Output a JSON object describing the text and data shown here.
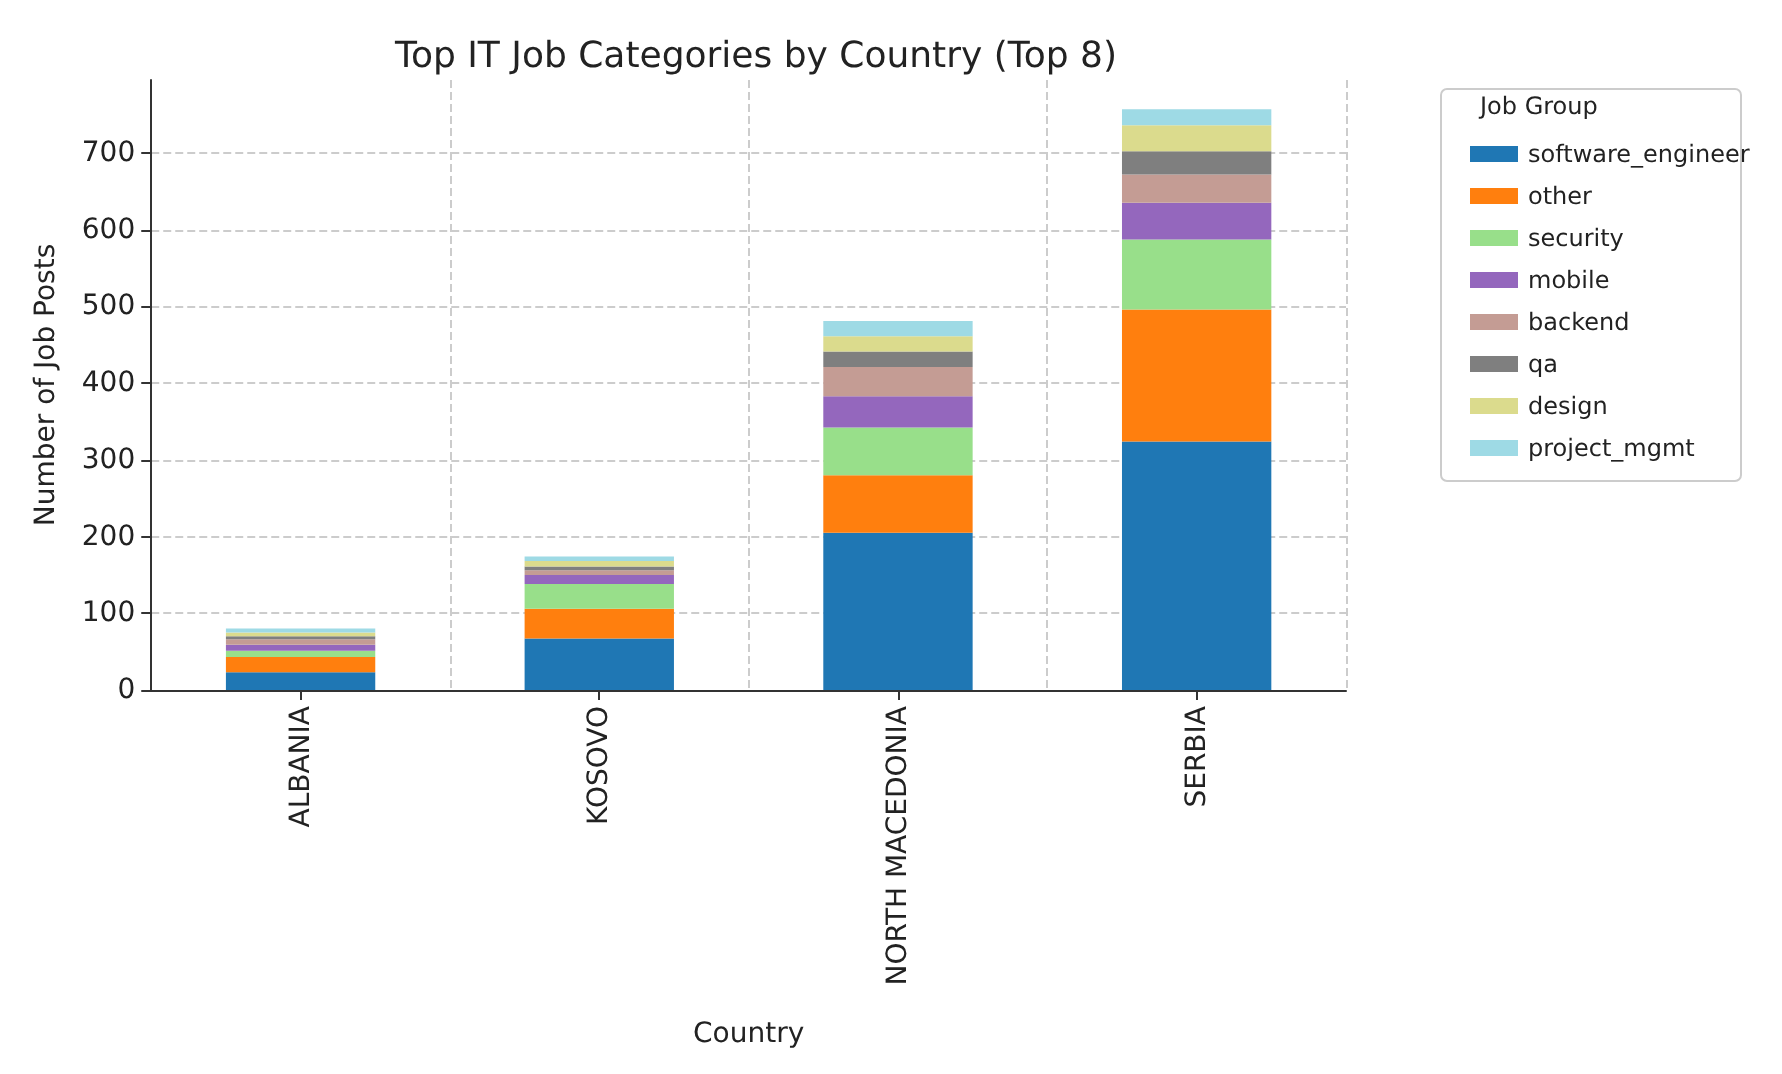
{
  "chart_data": {
    "type": "bar",
    "title": "Top IT Job Categories by Country (Top 8)",
    "xlabel": "Country",
    "ylabel": "Number of Job Posts",
    "legend_title": "Job Group",
    "categories": [
      "ALBANIA",
      "KOSOVO",
      "NORTH MACEDONIA",
      "SERBIA"
    ],
    "stacked": true,
    "ylim": [
      0,
      795
    ],
    "yticks": [
      0,
      100,
      200,
      300,
      400,
      500,
      600,
      700
    ],
    "grid": true,
    "legend": "top right",
    "series": [
      {
        "name": "software_engineer",
        "color": "#1f77b4",
        "values": [
          23,
          67,
          205,
          324
        ]
      },
      {
        "name": "other",
        "color": "#ff7f0e",
        "values": [
          20,
          39,
          75,
          172
        ]
      },
      {
        "name": "security",
        "color": "#98df8a",
        "values": [
          8,
          32,
          62,
          91
        ]
      },
      {
        "name": "mobile",
        "color": "#9467bd",
        "values": [
          8,
          12,
          41,
          48
        ]
      },
      {
        "name": "backend",
        "color": "#c49c94",
        "values": [
          7,
          6,
          38,
          37
        ]
      },
      {
        "name": "qa",
        "color": "#7f7f7f",
        "values": [
          4,
          5,
          20,
          30
        ]
      },
      {
        "name": "design",
        "color": "#dbdb8d",
        "values": [
          5,
          7,
          20,
          34
        ]
      },
      {
        "name": "project_mgmt",
        "color": "#9edae5",
        "values": [
          5,
          6,
          20,
          21
        ]
      }
    ]
  }
}
